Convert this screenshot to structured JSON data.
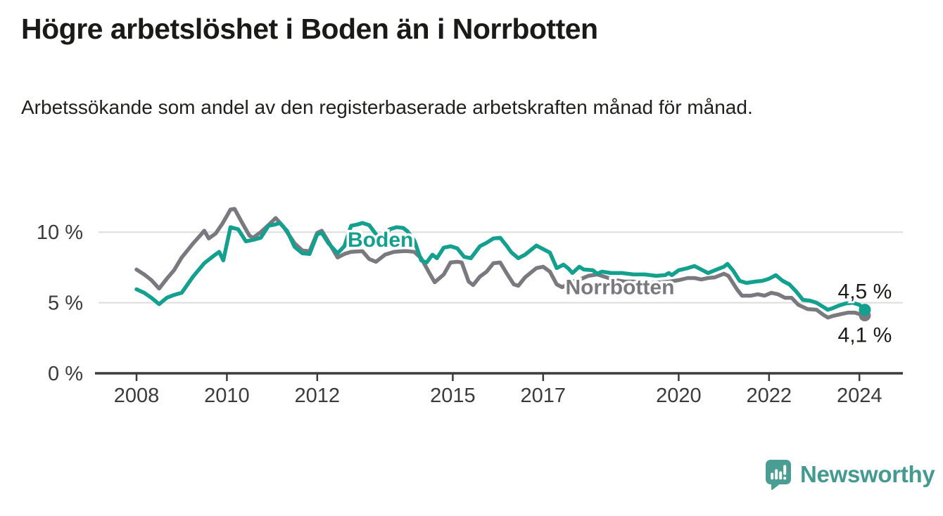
{
  "title": "Högre arbetslöshet i Boden än i Norrbotten",
  "subtitle": "Arbetssökande som andel av den registerbaserade arbetskraften månad för månad.",
  "branding": {
    "logo_text": "Newsworthy",
    "logo_icon": "bar-chart-speech-bubble-icon",
    "logo_color": "#449a91"
  },
  "colors": {
    "boden": "#14a08e",
    "norrbotten": "#7b7980",
    "grid": "#dddddd",
    "axis": "#3b3b3b",
    "label_text": "#1c1c1a",
    "halo": "#ffffff"
  },
  "chart_data": {
    "type": "line",
    "title": "Högre arbetslöshet i Boden än i Norrbotten",
    "subtitle": "Arbetssökande som andel av den registerbaserade arbetskraften månad för månad.",
    "xlabel": "",
    "ylabel": "",
    "xlim": [
      2007.1,
      2025.0
    ],
    "ylim": [
      0,
      13.2
    ],
    "grid": "horizontal",
    "legend_position": "inline-labels",
    "x_ticks": [
      {
        "year": 2008,
        "label": "2008"
      },
      {
        "year": 2010,
        "label": "2010"
      },
      {
        "year": 2012,
        "label": "2012"
      },
      {
        "year": 2015,
        "label": "2015"
      },
      {
        "year": 2017,
        "label": "2017"
      },
      {
        "year": 2020,
        "label": "2020"
      },
      {
        "year": 2022,
        "label": "2022"
      },
      {
        "year": 2024,
        "label": "2024"
      }
    ],
    "y_ticks": [
      {
        "value": 0,
        "label": "0 %"
      },
      {
        "value": 5,
        "label": "5 %"
      },
      {
        "value": 10,
        "label": "10 %"
      }
    ],
    "series": [
      {
        "name": "Norrbotten",
        "color": "#7b7980",
        "end_label": "4,1 %",
        "end_label_position": "below",
        "label_at": {
          "x": 2018.7,
          "y": 6.1
        },
        "points": [
          [
            2008.0,
            7.35
          ],
          [
            2008.17,
            7.0
          ],
          [
            2008.33,
            6.6
          ],
          [
            2008.5,
            6.0
          ],
          [
            2008.67,
            6.7
          ],
          [
            2008.83,
            7.3
          ],
          [
            2009.0,
            8.2
          ],
          [
            2009.25,
            9.2
          ],
          [
            2009.42,
            9.8
          ],
          [
            2009.5,
            10.1
          ],
          [
            2009.6,
            9.55
          ],
          [
            2009.75,
            9.9
          ],
          [
            2009.9,
            10.6
          ],
          [
            2010.08,
            11.6
          ],
          [
            2010.17,
            11.65
          ],
          [
            2010.33,
            10.7
          ],
          [
            2010.5,
            9.75
          ],
          [
            2010.58,
            9.6
          ],
          [
            2010.75,
            10.0
          ],
          [
            2010.92,
            10.5
          ],
          [
            2011.08,
            11.0
          ],
          [
            2011.25,
            10.4
          ],
          [
            2011.5,
            9.2
          ],
          [
            2011.67,
            8.7
          ],
          [
            2011.83,
            8.65
          ],
          [
            2012.0,
            9.95
          ],
          [
            2012.1,
            10.1
          ],
          [
            2012.25,
            9.3
          ],
          [
            2012.45,
            8.2
          ],
          [
            2012.6,
            8.45
          ],
          [
            2012.75,
            8.6
          ],
          [
            2013.0,
            8.65
          ],
          [
            2013.15,
            8.1
          ],
          [
            2013.3,
            7.9
          ],
          [
            2013.5,
            8.4
          ],
          [
            2013.7,
            8.6
          ],
          [
            2013.9,
            8.65
          ],
          [
            2014.0,
            8.65
          ],
          [
            2014.15,
            8.6
          ],
          [
            2014.3,
            8.15
          ],
          [
            2014.5,
            7.0
          ],
          [
            2014.6,
            6.45
          ],
          [
            2014.8,
            7.0
          ],
          [
            2014.95,
            7.85
          ],
          [
            2015.1,
            7.9
          ],
          [
            2015.2,
            7.85
          ],
          [
            2015.35,
            6.5
          ],
          [
            2015.45,
            6.25
          ],
          [
            2015.6,
            6.85
          ],
          [
            2015.75,
            7.2
          ],
          [
            2015.9,
            7.8
          ],
          [
            2016.05,
            7.85
          ],
          [
            2016.2,
            7.05
          ],
          [
            2016.35,
            6.3
          ],
          [
            2016.45,
            6.2
          ],
          [
            2016.6,
            6.8
          ],
          [
            2016.85,
            7.45
          ],
          [
            2017.0,
            7.55
          ],
          [
            2017.15,
            7.2
          ],
          [
            2017.3,
            6.3
          ],
          [
            2017.42,
            6.1
          ],
          [
            2017.55,
            6.3
          ],
          [
            2017.7,
            6.55
          ],
          [
            2017.85,
            6.7
          ],
          [
            2018.0,
            6.9
          ],
          [
            2018.2,
            7.0
          ],
          [
            2018.4,
            6.8
          ],
          [
            2018.6,
            6.6
          ],
          [
            2018.8,
            6.5
          ],
          [
            2019.0,
            6.5
          ],
          [
            2019.2,
            6.4
          ],
          [
            2019.4,
            6.4
          ],
          [
            2019.6,
            6.45
          ],
          [
            2019.8,
            6.5
          ],
          [
            2020.0,
            6.6
          ],
          [
            2020.2,
            6.75
          ],
          [
            2020.35,
            6.75
          ],
          [
            2020.5,
            6.65
          ],
          [
            2020.65,
            6.75
          ],
          [
            2020.8,
            6.8
          ],
          [
            2021.0,
            7.05
          ],
          [
            2021.1,
            6.9
          ],
          [
            2021.3,
            5.9
          ],
          [
            2021.4,
            5.5
          ],
          [
            2021.6,
            5.5
          ],
          [
            2021.75,
            5.6
          ],
          [
            2021.9,
            5.5
          ],
          [
            2022.05,
            5.7
          ],
          [
            2022.2,
            5.6
          ],
          [
            2022.35,
            5.35
          ],
          [
            2022.5,
            5.35
          ],
          [
            2022.65,
            4.85
          ],
          [
            2022.85,
            4.55
          ],
          [
            2023.05,
            4.5
          ],
          [
            2023.2,
            4.15
          ],
          [
            2023.3,
            3.95
          ],
          [
            2023.4,
            4.05
          ],
          [
            2023.6,
            4.2
          ],
          [
            2023.75,
            4.3
          ],
          [
            2023.9,
            4.3
          ],
          [
            2024.0,
            4.2
          ],
          [
            2024.12,
            4.1
          ]
        ]
      },
      {
        "name": "Boden",
        "color": "#14a08e",
        "end_label": "4,5 %",
        "end_label_position": "above",
        "label_at": {
          "x": 2013.4,
          "y": 9.45
        },
        "points": [
          [
            2008.0,
            5.95
          ],
          [
            2008.17,
            5.7
          ],
          [
            2008.33,
            5.35
          ],
          [
            2008.5,
            4.9
          ],
          [
            2008.67,
            5.35
          ],
          [
            2008.83,
            5.55
          ],
          [
            2009.0,
            5.7
          ],
          [
            2009.25,
            6.85
          ],
          [
            2009.5,
            7.8
          ],
          [
            2009.7,
            8.3
          ],
          [
            2009.83,
            8.6
          ],
          [
            2009.92,
            8.0
          ],
          [
            2010.08,
            10.35
          ],
          [
            2010.25,
            10.2
          ],
          [
            2010.42,
            9.35
          ],
          [
            2010.58,
            9.45
          ],
          [
            2010.75,
            9.6
          ],
          [
            2010.92,
            10.45
          ],
          [
            2011.08,
            10.55
          ],
          [
            2011.17,
            10.65
          ],
          [
            2011.33,
            10.1
          ],
          [
            2011.5,
            8.95
          ],
          [
            2011.67,
            8.5
          ],
          [
            2011.83,
            8.45
          ],
          [
            2012.0,
            9.85
          ],
          [
            2012.1,
            9.95
          ],
          [
            2012.25,
            9.2
          ],
          [
            2012.45,
            8.5
          ],
          [
            2012.6,
            9.0
          ],
          [
            2012.75,
            10.45
          ],
          [
            2012.9,
            10.55
          ],
          [
            2013.0,
            10.65
          ],
          [
            2013.15,
            10.5
          ],
          [
            2013.3,
            9.85
          ],
          [
            2013.45,
            9.4
          ],
          [
            2013.6,
            10.2
          ],
          [
            2013.75,
            10.35
          ],
          [
            2013.9,
            10.3
          ],
          [
            2014.0,
            10.05
          ],
          [
            2014.15,
            9.4
          ],
          [
            2014.3,
            8.0
          ],
          [
            2014.42,
            7.85
          ],
          [
            2014.55,
            8.4
          ],
          [
            2014.65,
            8.15
          ],
          [
            2014.8,
            8.9
          ],
          [
            2014.95,
            9.0
          ],
          [
            2015.1,
            8.85
          ],
          [
            2015.25,
            8.25
          ],
          [
            2015.4,
            8.15
          ],
          [
            2015.6,
            9.0
          ],
          [
            2015.75,
            9.25
          ],
          [
            2015.9,
            9.55
          ],
          [
            2016.05,
            9.6
          ],
          [
            2016.2,
            9.0
          ],
          [
            2016.3,
            8.55
          ],
          [
            2016.45,
            8.15
          ],
          [
            2016.6,
            8.4
          ],
          [
            2016.85,
            9.05
          ],
          [
            2017.0,
            8.8
          ],
          [
            2017.15,
            8.55
          ],
          [
            2017.3,
            7.45
          ],
          [
            2017.45,
            7.7
          ],
          [
            2017.55,
            7.45
          ],
          [
            2017.65,
            7.1
          ],
          [
            2017.8,
            7.55
          ],
          [
            2017.9,
            7.35
          ],
          [
            2018.1,
            7.3
          ],
          [
            2018.2,
            7.05
          ],
          [
            2018.3,
            7.2
          ],
          [
            2018.5,
            7.1
          ],
          [
            2018.75,
            7.1
          ],
          [
            2019.0,
            7.0
          ],
          [
            2019.25,
            7.0
          ],
          [
            2019.5,
            6.9
          ],
          [
            2019.7,
            6.95
          ],
          [
            2019.78,
            7.1
          ],
          [
            2019.85,
            6.95
          ],
          [
            2020.0,
            7.3
          ],
          [
            2020.2,
            7.45
          ],
          [
            2020.35,
            7.6
          ],
          [
            2020.5,
            7.35
          ],
          [
            2020.65,
            7.1
          ],
          [
            2020.8,
            7.3
          ],
          [
            2021.0,
            7.55
          ],
          [
            2021.08,
            7.75
          ],
          [
            2021.2,
            7.3
          ],
          [
            2021.35,
            6.55
          ],
          [
            2021.5,
            6.4
          ],
          [
            2021.7,
            6.5
          ],
          [
            2021.85,
            6.55
          ],
          [
            2022.0,
            6.7
          ],
          [
            2022.15,
            6.95
          ],
          [
            2022.3,
            6.55
          ],
          [
            2022.45,
            6.3
          ],
          [
            2022.6,
            5.8
          ],
          [
            2022.75,
            5.2
          ],
          [
            2022.9,
            5.15
          ],
          [
            2023.05,
            5.0
          ],
          [
            2023.2,
            4.7
          ],
          [
            2023.3,
            4.5
          ],
          [
            2023.4,
            4.6
          ],
          [
            2023.55,
            4.8
          ],
          [
            2023.7,
            4.95
          ],
          [
            2023.85,
            5.0
          ],
          [
            2024.0,
            4.85
          ],
          [
            2024.12,
            4.5
          ]
        ]
      }
    ]
  }
}
